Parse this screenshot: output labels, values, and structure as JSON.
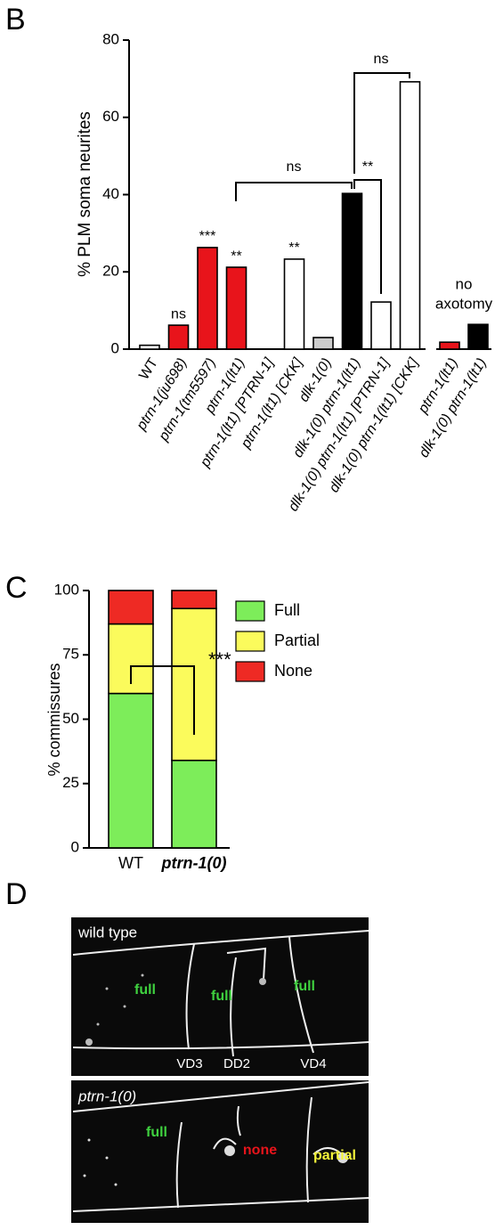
{
  "chart_data": [
    {
      "type": "bar",
      "panel_label": "B",
      "ylabel": "% PLM soma neurites",
      "categories": [
        "WT",
        "ptrn-1(ju698)",
        "ptrn-1(tm5597)",
        "ptrn-1(lt1)",
        "ptrn-1(lt1) [PTRN-1]",
        "ptrn-1(lt1) [CKK]",
        "dlk-1(0)",
        "dlk-1(0) ptrn-1(lt1)",
        "dlk-1(0) ptrn-1(lt1) [PTRN-1]",
        "dlk-1(0) ptrn-1(lt1) [CKK]",
        "ptrn-1(lt1)",
        "dlk-1(0) ptrn-1(lt1)"
      ],
      "values": [
        1,
        6.2,
        26.3,
        21.2,
        0,
        23.3,
        3,
        40.3,
        12.2,
        69.2,
        1.8,
        6.4
      ],
      "colors": [
        "#ffffff",
        "#e8141b",
        "#e8141b",
        "#e8141b",
        "#ffffff",
        "#ffffff",
        "#cccccc",
        "#000000",
        "#ffffff",
        "#ffffff",
        "#e8141b",
        "#000000"
      ],
      "ylim": [
        0,
        80
      ],
      "yticks": [
        0,
        20,
        40,
        60,
        80
      ],
      "significance": [
        null,
        "ns",
        "***",
        "**",
        null,
        "**",
        null,
        null,
        null,
        null,
        null,
        null
      ],
      "comparisons": [
        "ns",
        "**",
        "ns"
      ],
      "group_label": [
        "no",
        "axotomy"
      ]
    },
    {
      "type": "stacked_bar",
      "panel_label": "C",
      "ylabel": "% commissures",
      "categories": [
        "WT",
        "ptrn-1(0)"
      ],
      "series": [
        {
          "name": "Full",
          "color": "#7ded5a",
          "values": [
            60,
            34
          ]
        },
        {
          "name": "Partial",
          "color": "#fbfb5c",
          "values": [
            27,
            59
          ]
        },
        {
          "name": "None",
          "color": "#ee2a24",
          "values": [
            13,
            7
          ]
        }
      ],
      "ylim": [
        0,
        100
      ],
      "yticks": [
        0,
        25,
        50,
        75,
        100
      ],
      "comparison": "***"
    }
  ],
  "panel_d": {
    "panel_label": "D",
    "images": [
      {
        "title": "wild type",
        "labels": [
          "full",
          "full",
          "full"
        ],
        "neurons": [
          "VD3",
          "DD2",
          "VD4"
        ]
      },
      {
        "title": "ptrn-1(0)",
        "labels": [
          "full",
          "none",
          "partial"
        ]
      }
    ]
  }
}
